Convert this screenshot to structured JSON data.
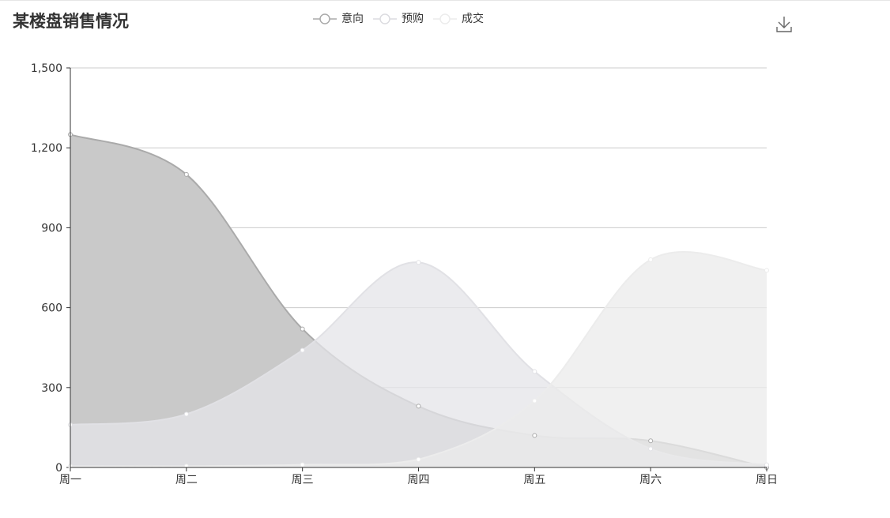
{
  "colors": {
    "axis": "#333333",
    "grid": "#cccccc",
    "text": "#333333",
    "icon": "#666666"
  },
  "toolbox": {
    "download_icon": "download-icon"
  },
  "chart_data": {
    "type": "area",
    "title": "某楼盘销售情况",
    "categories": [
      "周一",
      "周二",
      "周三",
      "周四",
      "周五",
      "周六",
      "周日"
    ],
    "ylim": [
      0,
      1500
    ],
    "yticks": [
      0,
      300,
      600,
      900,
      1200,
      1500
    ],
    "ytick_labels": [
      "0",
      "300",
      "600",
      "900",
      "1,200",
      "1,500"
    ],
    "grid": true,
    "smooth": true,
    "legend_position": "top-center",
    "series": [
      {
        "name": "意向",
        "values": [
          1250,
          1100,
          520,
          230,
          120,
          100,
          0
        ],
        "line_color": "#aaaaaa",
        "fill_color": "#c9c9c9"
      },
      {
        "name": "预购",
        "values": [
          160,
          200,
          440,
          770,
          360,
          70,
          10
        ],
        "line_color": "#e1e1e5",
        "fill_color": "#e4e4e8",
        "fill_opacity": 0.75
      },
      {
        "name": "成交",
        "values": [
          5,
          5,
          10,
          30,
          250,
          780,
          740
        ],
        "line_color": "#ececec",
        "fill_color": "#ebebeb",
        "fill_opacity": 0.75
      }
    ]
  }
}
